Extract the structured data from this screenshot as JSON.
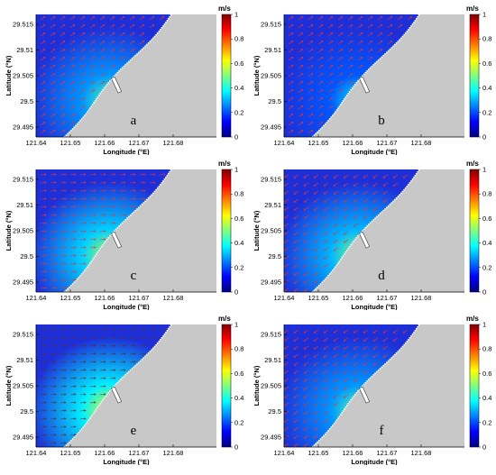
{
  "common": {
    "y_ticks": [
      "29.515",
      "29.51",
      "29.505",
      "29.5",
      "29.495"
    ],
    "x_ticks": [
      "121.64",
      "121.65",
      "121.66",
      "121.67",
      "121.68"
    ],
    "y_label": "Latitude (°N)",
    "x_label": "Longitude (°E)",
    "colorbar_unit": "m/s",
    "colorbar_ticks": [
      "1",
      "0.8",
      "0.6",
      "0.4",
      "0.2",
      "0"
    ],
    "colors": {
      "land": "#c8c8c8",
      "water_base": "#1e2fd8",
      "arrow": "#e23838",
      "arrow_dark": "#5a3030",
      "coast": "#ffffff"
    }
  },
  "panels": [
    {
      "id": "a",
      "label": "a",
      "max_speed": 0.45,
      "arrow_dir": "northeast"
    },
    {
      "id": "b",
      "label": "b",
      "max_speed": 0.35,
      "arrow_dir": "northeast"
    },
    {
      "id": "c",
      "label": "c",
      "max_speed": 0.55,
      "arrow_dir": "east"
    },
    {
      "id": "d",
      "label": "d",
      "max_speed": 0.5,
      "arrow_dir": "southwest"
    },
    {
      "id": "e",
      "label": "e",
      "max_speed": 0.6,
      "arrow_dir": "east"
    },
    {
      "id": "f",
      "label": "f",
      "max_speed": 0.45,
      "arrow_dir": "southwest"
    }
  ]
}
